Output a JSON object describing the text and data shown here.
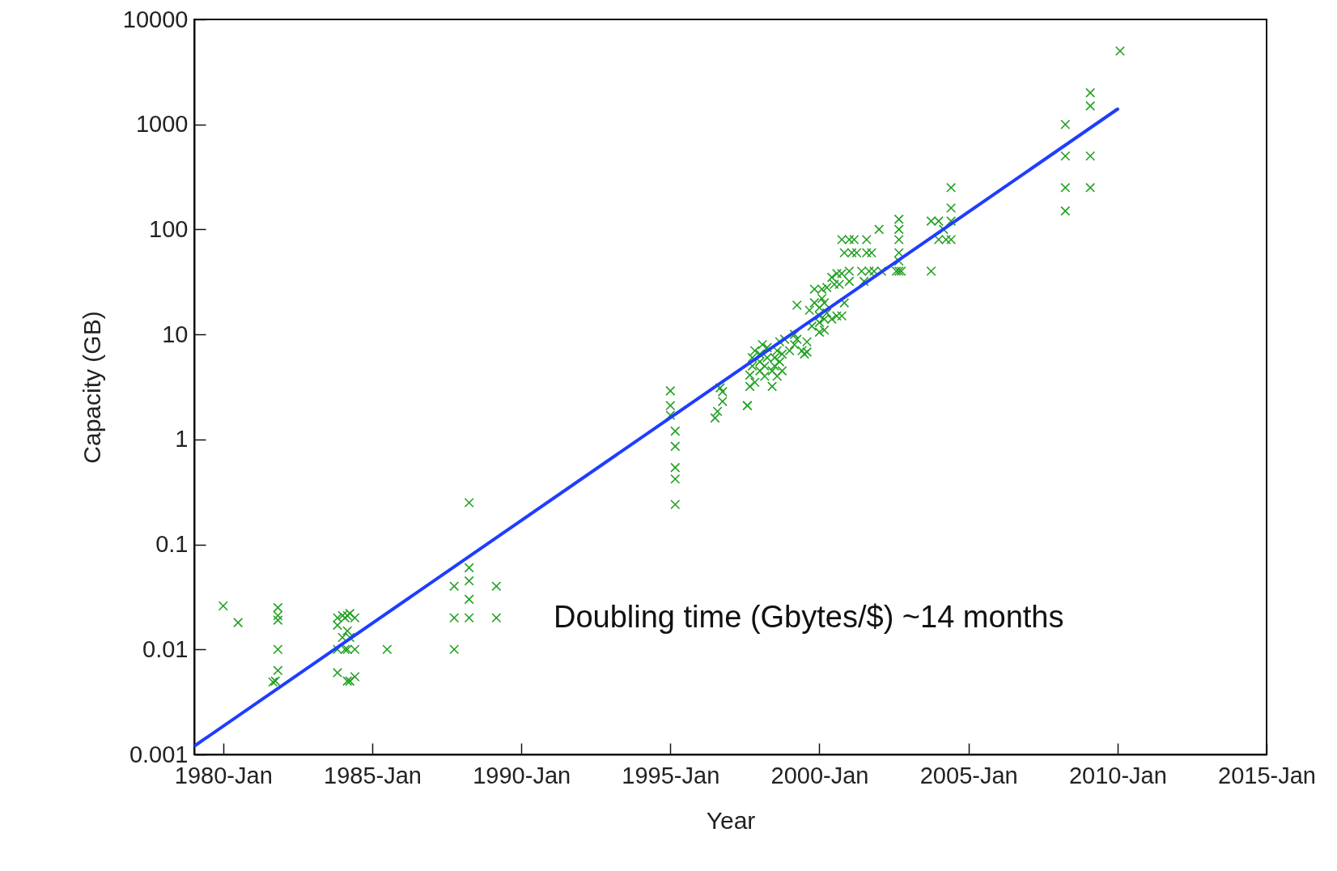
{
  "chart_data": {
    "type": "scatter",
    "xlabel": "Year",
    "ylabel": "Capacity (GB)",
    "log": "y",
    "annotations": [
      "Doubling time (Gbytes/$) ~14 months"
    ],
    "xlim": [
      "1979-01-11",
      "2015-01"
    ],
    "xticks": [
      {
        "value": "1980-01",
        "label": "1980-Jan"
      },
      {
        "value": "1985-01",
        "label": "1985-Jan"
      },
      {
        "value": "1990-01",
        "label": "1990-Jan"
      },
      {
        "value": "1995-01",
        "label": "1995-Jan"
      },
      {
        "value": "2000-01",
        "label": "2000-Jan"
      },
      {
        "value": "2005-01",
        "label": "2005-Jan"
      },
      {
        "value": "2010-01",
        "label": "2010-Jan"
      },
      {
        "value": "2015-01",
        "label": "2015-Jan"
      }
    ],
    "ylim": [
      0.001,
      10000
    ],
    "yticks": [
      0.001,
      0.01,
      0.1,
      1,
      10,
      100,
      1000,
      10000
    ],
    "series": [
      {
        "color": "#22a022",
        "marker": "cross",
        "x": [
          "1980-01",
          "1980-07",
          "1981-11",
          "1981-11",
          "1981-11",
          "1981-11",
          "1981-11",
          "1981-10",
          "1981-09",
          "1983-11",
          "1984-01",
          "1984-02",
          "1984-03",
          "1984-04",
          "1984-06",
          "1983-11",
          "1984-01",
          "1984-03",
          "1984-04",
          "1983-11",
          "1984-02",
          "1984-03",
          "1984-06",
          "1983-11",
          "1984-03",
          "1984-04",
          "1984-06",
          "1985-07",
          "1987-10",
          "1987-10",
          "1987-10",
          "1988-04",
          "1988-04",
          "1988-04",
          "1988-04",
          "1988-04",
          "1989-03",
          "1989-03",
          "1995-01",
          "1995-01",
          "1995-01",
          "1995-03",
          "1995-03",
          "1995-03",
          "1995-03",
          "1995-03",
          "1996-07",
          "1996-08",
          "1996-10",
          "1996-10",
          "1996-09",
          "1997-08",
          "1997-08",
          "1997-09",
          "1997-09",
          "1997-10",
          "1997-10",
          "1997-11",
          "1997-11",
          "1998-01",
          "1998-01",
          "1998-01",
          "1998-02",
          "1998-03",
          "1998-03",
          "1998-04",
          "1998-04",
          "1998-06",
          "1998-06",
          "1998-07",
          "1998-07",
          "1998-08",
          "1998-08",
          "1998-09",
          "1998-09",
          "1998-10",
          "1998-10",
          "1998-11",
          "1999-01",
          "1999-03",
          "1999-03",
          "1999-04",
          "1999-06",
          "1999-07",
          "1999-08",
          "1999-08",
          "1999-04",
          "1999-09",
          "1999-10",
          "1999-11",
          "1999-11",
          "2000-01",
          "2000-01",
          "2000-01",
          "2000-01",
          "2000-02",
          "2000-02",
          "2000-03",
          "2000-03",
          "2000-03",
          "2000-04",
          "2000-04",
          "2000-06",
          "2000-06",
          "2000-07",
          "2000-08",
          "2000-08",
          "2000-09",
          "2000-10",
          "2000-10",
          "2000-11",
          "2001-01",
          "2001-01",
          "2000-10",
          "2000-11",
          "2001-01",
          "2001-02",
          "2001-03",
          "2001-04",
          "2001-06",
          "2001-07",
          "2001-08",
          "2001-08",
          "2001-09",
          "2001-10",
          "2001-11",
          "2002-01",
          "2002-02",
          "2002-09",
          "2002-09",
          "2002-09",
          "2002-09",
          "2002-09",
          "2002-09",
          "2002-08",
          "2002-10",
          "2003-10",
          "2003-10",
          "2004-01",
          "2004-01",
          "2004-03",
          "2004-06",
          "2004-06",
          "2004-06",
          "2004-06",
          "2004-04",
          "2008-04",
          "2008-04",
          "2008-04",
          "2008-04",
          "2009-02",
          "2009-02",
          "2009-02",
          "2009-02",
          "2010-02"
        ],
        "values": [
          0.026,
          0.018,
          0.025,
          0.021,
          0.019,
          0.01,
          0.0063,
          0.005,
          0.0049,
          0.02,
          0.021,
          0.02,
          0.021,
          0.022,
          0.02,
          0.017,
          0.013,
          0.015,
          0.013,
          0.01,
          0.01,
          0.01,
          0.01,
          0.006,
          0.005,
          0.005,
          0.0055,
          0.01,
          0.04,
          0.02,
          0.01,
          0.25,
          0.06,
          0.045,
          0.03,
          0.02,
          0.04,
          0.02,
          2.9,
          2.1,
          1.7,
          1.2,
          0.86,
          0.54,
          0.42,
          0.24,
          1.6,
          1.85,
          2.3,
          2.85,
          3.1,
          2.1,
          2.1,
          3.2,
          4.1,
          5,
          6,
          7,
          3.5,
          4.5,
          5.5,
          6.5,
          8,
          5,
          4,
          6,
          7.5,
          3.2,
          4.5,
          5,
          6,
          7,
          4,
          5.5,
          8.5,
          4.5,
          6.5,
          9,
          7,
          8,
          10,
          9,
          7,
          6.5,
          8.5,
          6.8,
          19,
          17,
          12,
          20,
          27,
          10.5,
          13,
          15,
          18,
          22,
          27,
          11,
          14,
          20,
          16,
          28,
          35,
          14,
          30,
          38,
          15,
          30,
          15,
          38,
          20,
          32,
          40,
          80,
          60,
          80,
          60,
          80,
          60,
          40,
          32,
          80,
          60,
          40,
          60,
          40,
          100,
          40,
          125,
          100,
          80,
          60,
          50,
          40,
          40,
          40,
          40,
          120,
          120,
          80,
          100,
          250,
          160,
          120,
          80,
          80,
          1000,
          500,
          250,
          150,
          2000,
          1500,
          500,
          250,
          5000
        ]
      },
      {
        "type": "line",
        "color": "#1f3dff",
        "x": [
          "1979-01-11",
          "2010-01"
        ],
        "values": [
          0.0012,
          1400
        ]
      }
    ]
  }
}
